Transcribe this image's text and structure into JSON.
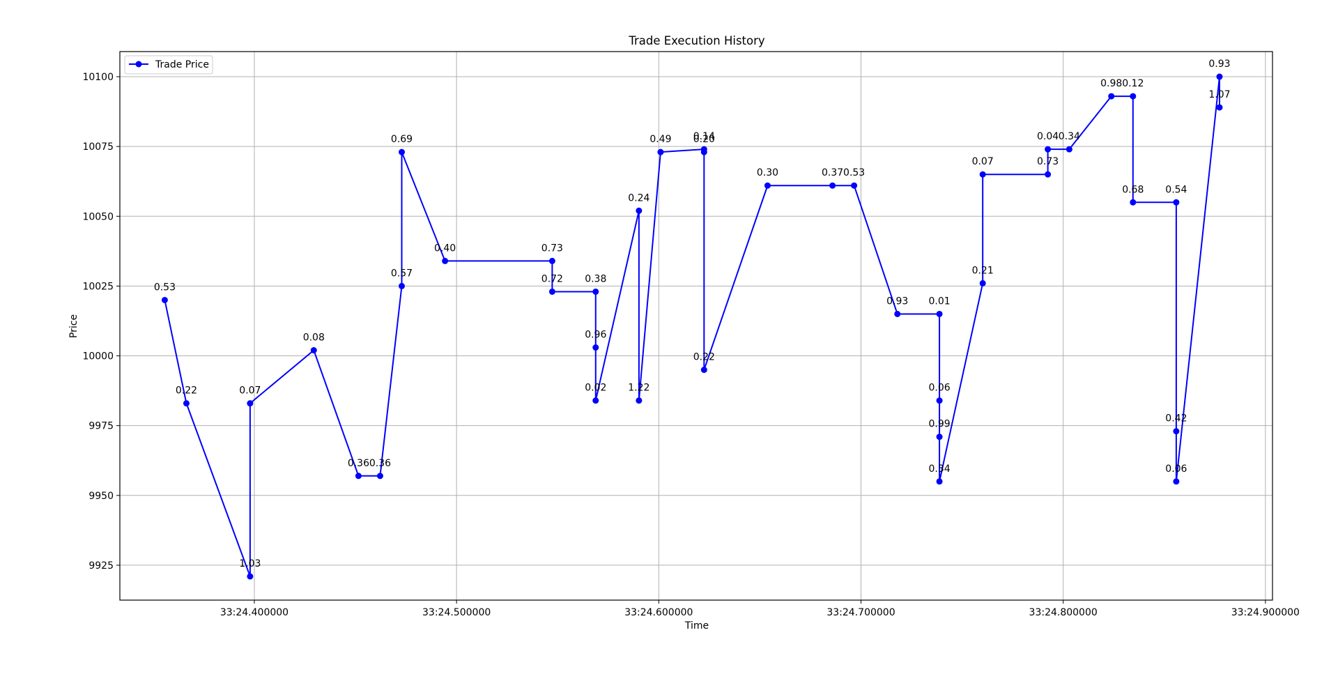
{
  "chart_data": {
    "type": "line",
    "title": "Trade Execution History",
    "xlabel": "Time",
    "ylabel": "Price",
    "grid": true,
    "legend_position": "top-left",
    "x_tick_labels": [
      "33:24.400000",
      "33:24.500000",
      "33:24.600000",
      "33:24.700000",
      "33:24.800000",
      "33:24.900000"
    ],
    "x_ticks": [
      0.4,
      0.5,
      0.6,
      0.7,
      0.8,
      0.9
    ],
    "xlim": [
      0.3335,
      0.9035
    ],
    "y_ticks": [
      9925,
      9950,
      9975,
      10000,
      10025,
      10050,
      10075,
      10100
    ],
    "ylim": [
      9912.5,
      10109
    ],
    "x_unit_note": "seconds after 33:24",
    "series": [
      {
        "name": "Trade Price",
        "color": "#0000ff",
        "x": [
          0.3557,
          0.3664,
          0.3979,
          0.3979,
          0.4294,
          0.4515,
          0.4622,
          0.4729,
          0.4729,
          0.4943,
          0.5473,
          0.5473,
          0.5688,
          0.5688,
          0.5688,
          0.5902,
          0.5902,
          0.6009,
          0.6224,
          0.6224,
          0.6224,
          0.6538,
          0.6859,
          0.6966,
          0.718,
          0.7388,
          0.7388,
          0.7388,
          0.7388,
          0.7602,
          0.7602,
          0.7924,
          0.7924,
          0.803,
          0.8238,
          0.8345,
          0.8345,
          0.8559,
          0.8559,
          0.8559,
          0.8773,
          0.8773
        ],
        "y": [
          10020,
          9983,
          9921,
          9983,
          10002,
          9957,
          9957,
          10025,
          10073,
          10034,
          10034,
          10023,
          10023,
          10003,
          9984,
          10052,
          9984,
          10073,
          10074,
          10073,
          9995,
          10061,
          10061,
          10061,
          10015,
          10015,
          9984,
          9971,
          9955,
          10026,
          10065,
          10065,
          10074,
          10074,
          10093,
          10093,
          10055,
          10055,
          9973,
          9955,
          10100,
          10089
        ],
        "labels": [
          "0.53",
          "0.22",
          "1.03",
          "0.07",
          "0.08",
          "0.36",
          "0.36",
          "0.57",
          "0.69",
          "0.40",
          "0.73",
          "0.72",
          "0.38",
          "0.96",
          "0.02",
          "0.24",
          "1.22",
          "0.49",
          "0.14",
          "0.20",
          "0.22",
          "0.30",
          "0.37",
          "0.53",
          "0.93",
          "0.01",
          "0.06",
          "0.99",
          "0.34",
          "0.21",
          "0.07",
          "0.73",
          "0.04",
          "0.34",
          "0.98",
          "0.12",
          "0.68",
          "0.54",
          "0.42",
          "0.06",
          "0.93",
          "1.07"
        ]
      }
    ]
  }
}
